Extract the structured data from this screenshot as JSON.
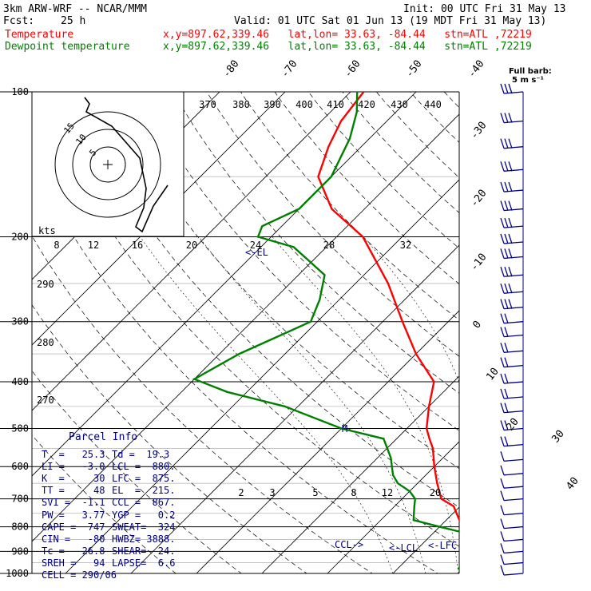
{
  "header": {
    "model": "3km ARW-WRF -- NCAR/MMM",
    "init": "Init: 00 UTC Fri 31 May 13",
    "fcst_label": "Fcst:",
    "fcst_value": "25 h",
    "valid": "Valid: 01 UTC Sat 01 Jun 13 (19 MDT Fri 31 May 13)",
    "temperature_label": "Temperature",
    "temperature_info": "x,y=897.62,339.46   lat,lon= 33.63, -84.44   stn=ATL ,72219",
    "dewpoint_label": "Dewpoint temperature",
    "dewpoint_info": "x,y=897.62,339.46   lat,lon= 33.63, -84.44   stn=ATL ,72219"
  },
  "barb_legend": {
    "line1": "Full barb:",
    "line2": "5 m s⁻¹"
  },
  "parcel": {
    "title": "Parcel Info",
    "rows": [
      [
        "T  =   25.3",
        "Td =  19.3"
      ],
      [
        "LI =   -3.0",
        "LCL =  880."
      ],
      [
        "K  =     30",
        "LFC =  875."
      ],
      [
        "TT =     48",
        "EL  =  215."
      ],
      [
        "SVI =  -1.1",
        "CCL =  867."
      ],
      [
        "PW =   3.77",
        "YGP =   0.2"
      ],
      [
        "CAPE =  747",
        "SWEAT=  324"
      ],
      [
        "CIN =   -80",
        "HWBZ= 3888."
      ],
      [
        "Tc =   26.8",
        "SHEAR=  24."
      ],
      [
        "SREH =   94",
        "LAPSE=  6.6"
      ],
      [
        "CELL = 290/06",
        ""
      ]
    ]
  },
  "hodograph": {
    "unit_label": "kts",
    "ring_labels": [
      "5",
      "10",
      "15"
    ]
  },
  "markers": {
    "el": "<-EL",
    "m": "M",
    "ccl": "CCL->",
    "lcl": "<-LCL",
    "lfc": "<-LFC"
  },
  "colors": {
    "temperature": "#ff0000",
    "dewpoint": "#008000",
    "barbs": "#000080",
    "grid": "#000000"
  },
  "chart_data": {
    "type": "line",
    "title": "3km ARW-WRF -- NCAR/MMM",
    "y_axis": "pressure (hPa), log scale, inverted",
    "ylim": [
      1000,
      100
    ],
    "pressure_ticks": [
      "100",
      "200",
      "300",
      "400",
      "500",
      "600",
      "700",
      "800",
      "900",
      "1000"
    ],
    "isotherm_labels": [
      "-80",
      "-70",
      "-60",
      "-50",
      "-40",
      "-30",
      "-20",
      "-10",
      "0",
      "10",
      "20",
      "30",
      "40"
    ],
    "theta_labels": [
      "370",
      "380",
      "390",
      "400",
      "410",
      "420",
      "430",
      "440"
    ],
    "mixing_ratio_labels_upper": [
      "8",
      "12",
      "16",
      "20",
      "24",
      "28",
      "32"
    ],
    "mixing_ratio_labels_lower": [
      "2",
      "3",
      "5",
      "8",
      "12",
      "20"
    ],
    "dry_adiabat_labels": [
      "290",
      "280",
      "270"
    ],
    "series": [
      {
        "name": "Temperature",
        "points": [
          [
            25.3,
            980
          ],
          [
            23,
            950
          ],
          [
            21,
            920
          ],
          [
            18.5,
            895
          ],
          [
            18.2,
            880
          ],
          [
            17,
            850
          ],
          [
            16,
            825
          ],
          [
            14,
            800
          ],
          [
            12,
            775
          ],
          [
            9,
            725
          ],
          [
            6,
            700
          ],
          [
            3,
            650
          ],
          [
            0,
            600
          ],
          [
            -3,
            550
          ],
          [
            -5,
            525
          ],
          [
            -7,
            500
          ],
          [
            -10,
            450
          ],
          [
            -13,
            400
          ],
          [
            -20,
            350
          ],
          [
            -27,
            300
          ],
          [
            -35,
            250
          ],
          [
            -46,
            200
          ],
          [
            -55,
            175
          ],
          [
            -62,
            150
          ],
          [
            -65,
            130
          ],
          [
            -67,
            115
          ],
          [
            -68,
            100
          ]
        ]
      },
      {
        "name": "Dewpoint temperature",
        "points": [
          [
            19.3,
            980
          ],
          [
            19,
            950
          ],
          [
            18.8,
            920
          ],
          [
            18.6,
            895
          ],
          [
            18,
            880
          ],
          [
            17,
            850
          ],
          [
            15,
            825
          ],
          [
            10,
            800
          ],
          [
            5,
            775
          ],
          [
            3,
            725
          ],
          [
            2,
            700
          ],
          [
            0,
            675
          ],
          [
            -3,
            650
          ],
          [
            -5,
            625
          ],
          [
            -8,
            575
          ],
          [
            -12,
            525
          ],
          [
            -20,
            500
          ],
          [
            -32,
            450
          ],
          [
            -43,
            420
          ],
          [
            -50,
            395
          ],
          [
            -47,
            350
          ],
          [
            -41,
            300
          ],
          [
            -43,
            270
          ],
          [
            -46,
            240
          ],
          [
            -55,
            210
          ],
          [
            -62,
            200
          ],
          [
            -63,
            190
          ],
          [
            -60,
            175
          ],
          [
            -60,
            150
          ],
          [
            -63,
            125
          ],
          [
            -66,
            110
          ],
          [
            -69,
            100
          ]
        ]
      }
    ],
    "wind_barbs": [
      {
        "p": 100,
        "barbs": 3
      },
      {
        "p": 115,
        "barbs": 3
      },
      {
        "p": 130,
        "barbs": 3
      },
      {
        "p": 145,
        "barbs": 3
      },
      {
        "p": 160,
        "barbs": 3
      },
      {
        "p": 175,
        "barbs": 3
      },
      {
        "p": 190,
        "barbs": 3
      },
      {
        "p": 205,
        "barbs": 3
      },
      {
        "p": 220,
        "barbs": 3
      },
      {
        "p": 240,
        "barbs": 3
      },
      {
        "p": 260,
        "barbs": 3
      },
      {
        "p": 280,
        "barbs": 3
      },
      {
        "p": 300,
        "barbs": 2
      },
      {
        "p": 320,
        "barbs": 2
      },
      {
        "p": 345,
        "barbs": 2
      },
      {
        "p": 370,
        "barbs": 2
      },
      {
        "p": 400,
        "barbs": 2
      },
      {
        "p": 430,
        "barbs": 2
      },
      {
        "p": 460,
        "barbs": 2
      },
      {
        "p": 500,
        "barbs": 2
      },
      {
        "p": 540,
        "barbs": 2
      },
      {
        "p": 580,
        "barbs": 1
      },
      {
        "p": 620,
        "barbs": 1
      },
      {
        "p": 660,
        "barbs": 1
      },
      {
        "p": 700,
        "barbs": 1
      },
      {
        "p": 750,
        "barbs": 1
      },
      {
        "p": 800,
        "barbs": 1
      },
      {
        "p": 850,
        "barbs": 1
      },
      {
        "p": 900,
        "barbs": 1
      },
      {
        "p": 950,
        "barbs": 1
      },
      {
        "p": 1000,
        "barbs": 1
      }
    ]
  }
}
